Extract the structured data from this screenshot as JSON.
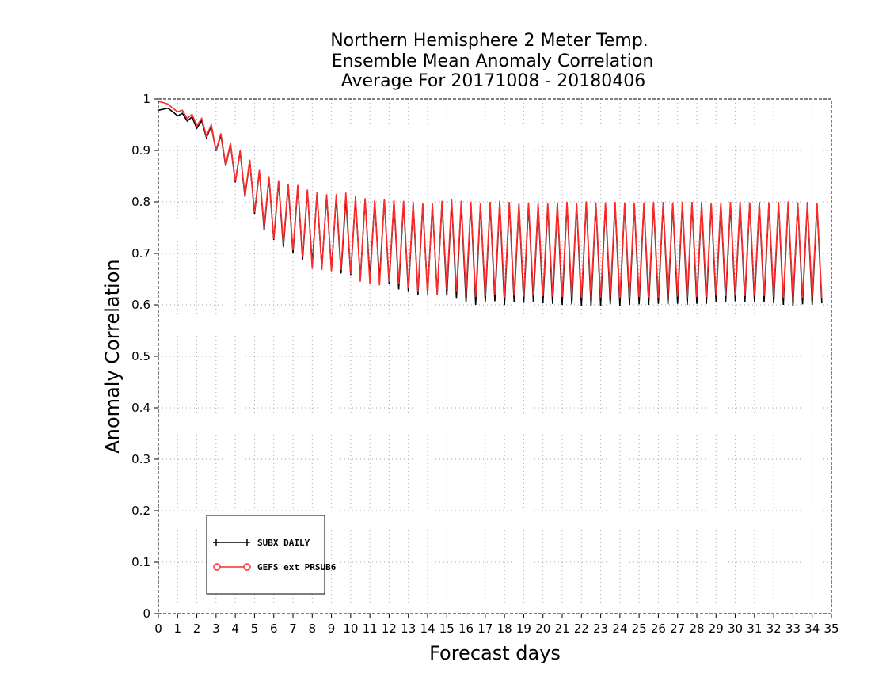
{
  "chart_data": {
    "type": "line",
    "title": [
      "Northern Hemisphere 2 Meter Temp.",
      "Ensemble Mean Anomaly Correlation",
      "Average For 20171008 - 20180406"
    ],
    "xlabel": "Forecast days",
    "ylabel": "Anomaly Correlation",
    "xlim": [
      0,
      35
    ],
    "ylim": [
      0,
      1
    ],
    "x_ticks": [
      "0",
      "1",
      "2",
      "3",
      "4",
      "5",
      "6",
      "7",
      "8",
      "9",
      "10",
      "11",
      "12",
      "13",
      "14",
      "15",
      "16",
      "17",
      "18",
      "19",
      "20",
      "21",
      "22",
      "23",
      "24",
      "25",
      "26",
      "27",
      "28",
      "29",
      "30",
      "31",
      "32",
      "33",
      "34",
      "35"
    ],
    "y_ticks": [
      "0",
      "0.1",
      "0.2",
      "0.3",
      "0.4",
      "0.5",
      "0.6",
      "0.7",
      "0.8",
      "0.9",
      "1"
    ],
    "grid": true,
    "legend_position": "bottom-left",
    "x_step": 0.25,
    "series": [
      {
        "name": "SUBX DAILY",
        "color": "#000000",
        "marker": "plus",
        "values": [
          0.978,
          0.98,
          0.982,
          0.975,
          0.967,
          0.972,
          0.957,
          0.965,
          0.943,
          0.958,
          0.925,
          0.947,
          0.899,
          0.93,
          0.87,
          0.912,
          0.838,
          0.898,
          0.81,
          0.88,
          0.777,
          0.86,
          0.745,
          0.848,
          0.726,
          0.839,
          0.712,
          0.832,
          0.7,
          0.83,
          0.688,
          0.822,
          0.678,
          0.817,
          0.672,
          0.812,
          0.667,
          0.81,
          0.661,
          0.808,
          0.658,
          0.806,
          0.65,
          0.805,
          0.652,
          0.802,
          0.648,
          0.804,
          0.64,
          0.802,
          0.63,
          0.799,
          0.625,
          0.796,
          0.62,
          0.794,
          0.622,
          0.794,
          0.62,
          0.798,
          0.618,
          0.8,
          0.612,
          0.798,
          0.605,
          0.798,
          0.6,
          0.796,
          0.606,
          0.797,
          0.607,
          0.798,
          0.6,
          0.797,
          0.606,
          0.795,
          0.604,
          0.796,
          0.605,
          0.793,
          0.603,
          0.794,
          0.602,
          0.796,
          0.6,
          0.798,
          0.601,
          0.796,
          0.598,
          0.8,
          0.598,
          0.797,
          0.598,
          0.796,
          0.601,
          0.797,
          0.598,
          0.797,
          0.6,
          0.795,
          0.601,
          0.796,
          0.6,
          0.797,
          0.602,
          0.798,
          0.601,
          0.796,
          0.602,
          0.797,
          0.6,
          0.798,
          0.602,
          0.797,
          0.602,
          0.795,
          0.606,
          0.796,
          0.605,
          0.797,
          0.607,
          0.798,
          0.605,
          0.797,
          0.606,
          0.798,
          0.605,
          0.797,
          0.603,
          0.798,
          0.6,
          0.799,
          0.598,
          0.797,
          0.601,
          0.798,
          0.6,
          0.795,
          0.603
        ]
      },
      {
        "name": "GEFS ext PRSUB6",
        "color": "#ff2a2a",
        "marker": "circle",
        "values": [
          0.995,
          0.993,
          0.99,
          0.982,
          0.975,
          0.978,
          0.962,
          0.97,
          0.948,
          0.962,
          0.928,
          0.95,
          0.9,
          0.933,
          0.872,
          0.914,
          0.84,
          0.9,
          0.812,
          0.882,
          0.78,
          0.862,
          0.75,
          0.85,
          0.728,
          0.842,
          0.718,
          0.835,
          0.706,
          0.833,
          0.694,
          0.824,
          0.67,
          0.82,
          0.668,
          0.815,
          0.665,
          0.815,
          0.668,
          0.818,
          0.66,
          0.812,
          0.645,
          0.807,
          0.64,
          0.803,
          0.638,
          0.806,
          0.645,
          0.805,
          0.64,
          0.802,
          0.632,
          0.8,
          0.625,
          0.798,
          0.618,
          0.797,
          0.62,
          0.802,
          0.63,
          0.806,
          0.625,
          0.802,
          0.62,
          0.8,
          0.615,
          0.798,
          0.617,
          0.8,
          0.62,
          0.802,
          0.614,
          0.8,
          0.618,
          0.798,
          0.616,
          0.799,
          0.618,
          0.797,
          0.617,
          0.798,
          0.616,
          0.799,
          0.615,
          0.8,
          0.615,
          0.798,
          0.613,
          0.801,
          0.612,
          0.799,
          0.613,
          0.799,
          0.615,
          0.8,
          0.612,
          0.799,
          0.614,
          0.798,
          0.615,
          0.799,
          0.613,
          0.8,
          0.614,
          0.8,
          0.615,
          0.799,
          0.616,
          0.8,
          0.613,
          0.8,
          0.615,
          0.799,
          0.615,
          0.798,
          0.618,
          0.799,
          0.617,
          0.8,
          0.618,
          0.8,
          0.617,
          0.799,
          0.618,
          0.8,
          0.617,
          0.799,
          0.615,
          0.8,
          0.612,
          0.801,
          0.61,
          0.799,
          0.613,
          0.8,
          0.612,
          0.798,
          0.612
        ]
      }
    ]
  }
}
